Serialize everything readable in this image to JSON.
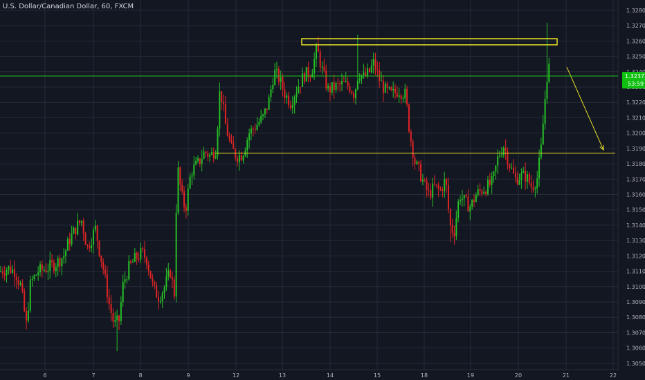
{
  "header": {
    "title": "U.S. Dollar/Canadian Dollar, 60, FXCM"
  },
  "price_tag": {
    "label": "1.32372",
    "countdown": "53:59"
  },
  "colors": {
    "background": "#131722",
    "up": "#26c026",
    "down": "#e02424",
    "annotation": "#e8e028",
    "last_price_line": "#1fc41f",
    "last_price_tag": "#10c010"
  },
  "chart_data": {
    "type": "candlestick",
    "title": "U.S. Dollar/Canadian Dollar, 60, FXCM",
    "xlabel": "",
    "ylabel": "",
    "x_ticks": [
      "6",
      "7",
      "8",
      "9",
      "12",
      "13",
      "14",
      "15",
      "18",
      "19",
      "20",
      "21",
      "22"
    ],
    "y_ticks": [
      "1.32800",
      "1.32700",
      "1.32600",
      "1.32500",
      "1.32400",
      "1.32300",
      "1.32200",
      "1.32100",
      "1.32000",
      "1.31900",
      "1.31800",
      "1.31700",
      "1.31600",
      "1.31500",
      "1.31400",
      "1.31300",
      "1.31200",
      "1.31100",
      "1.31000",
      "1.30900",
      "1.30800",
      "1.30700",
      "1.30600",
      "1.30500"
    ],
    "ylim": [
      1.3045,
      1.3284
    ],
    "grid": true,
    "last_price": 1.32372,
    "path_points": [
      [
        0,
        1.311
      ],
      [
        12,
        1.3112
      ],
      [
        22,
        1.311
      ],
      [
        30,
        1.31
      ],
      [
        38,
        1.3075
      ],
      [
        44,
        1.3102
      ],
      [
        55,
        1.311
      ],
      [
        68,
        1.3112
      ],
      [
        80,
        1.3115
      ],
      [
        92,
        1.312
      ],
      [
        100,
        1.313
      ],
      [
        112,
        1.314
      ],
      [
        118,
        1.3143
      ],
      [
        126,
        1.3125
      ],
      [
        138,
        1.3138
      ],
      [
        143,
        1.3125
      ],
      [
        150,
        1.311
      ],
      [
        158,
        1.3088
      ],
      [
        165,
        1.3075
      ],
      [
        172,
        1.3078
      ],
      [
        178,
        1.3102
      ],
      [
        186,
        1.3112
      ],
      [
        195,
        1.3118
      ],
      [
        205,
        1.3122
      ],
      [
        212,
        1.3118
      ],
      [
        222,
        1.3098
      ],
      [
        230,
        1.3093
      ],
      [
        238,
        1.31
      ],
      [
        246,
        1.311
      ],
      [
        252,
        1.3095
      ],
      [
        256,
        1.318
      ],
      [
        262,
        1.316
      ],
      [
        268,
        1.315
      ],
      [
        276,
        1.3175
      ],
      [
        286,
        1.318
      ],
      [
        296,
        1.3188
      ],
      [
        304,
        1.3185
      ],
      [
        312,
        1.319
      ],
      [
        318,
        1.323
      ],
      [
        326,
        1.3205
      ],
      [
        334,
        1.319
      ],
      [
        342,
        1.3185
      ],
      [
        350,
        1.3186
      ],
      [
        360,
        1.32
      ],
      [
        370,
        1.3205
      ],
      [
        380,
        1.321
      ],
      [
        388,
        1.322
      ],
      [
        396,
        1.324
      ],
      [
        404,
        1.3235
      ],
      [
        412,
        1.3225
      ],
      [
        420,
        1.322
      ],
      [
        430,
        1.323
      ],
      [
        440,
        1.3238
      ],
      [
        450,
        1.324
      ],
      [
        458,
        1.3255
      ],
      [
        466,
        1.324
      ],
      [
        474,
        1.3228
      ],
      [
        484,
        1.323
      ],
      [
        496,
        1.3232
      ],
      [
        506,
        1.323
      ],
      [
        512,
        1.3225
      ],
      [
        518,
        1.324
      ],
      [
        526,
        1.3236
      ],
      [
        534,
        1.324
      ],
      [
        540,
        1.3246
      ],
      [
        548,
        1.3235
      ],
      [
        556,
        1.3228
      ],
      [
        566,
        1.3225
      ],
      [
        576,
        1.3228
      ],
      [
        586,
        1.3225
      ],
      [
        592,
        1.32
      ],
      [
        600,
        1.318
      ],
      [
        606,
        1.3175
      ],
      [
        614,
        1.3165
      ],
      [
        620,
        1.316
      ],
      [
        628,
        1.3165
      ],
      [
        636,
        1.3162
      ],
      [
        644,
        1.317
      ],
      [
        650,
        1.314
      ],
      [
        656,
        1.3135
      ],
      [
        664,
        1.316
      ],
      [
        672,
        1.3155
      ],
      [
        680,
        1.3152
      ],
      [
        688,
        1.316
      ],
      [
        696,
        1.3163
      ],
      [
        704,
        1.3165
      ],
      [
        712,
        1.3168
      ],
      [
        720,
        1.3185
      ],
      [
        728,
        1.3192
      ],
      [
        736,
        1.318
      ],
      [
        744,
        1.317
      ],
      [
        752,
        1.3172
      ],
      [
        760,
        1.3172
      ],
      [
        768,
        1.3165
      ],
      [
        776,
        1.317
      ],
      [
        782,
        1.319
      ],
      [
        788,
        1.3225
      ],
      [
        792,
        1.3245
      ],
      [
        796,
        1.3238
      ]
    ],
    "extremes": [
      {
        "x": 38,
        "low": 1.3072
      },
      {
        "x": 170,
        "low": 1.3058
      },
      {
        "x": 460,
        "high": 1.3263
      },
      {
        "x": 518,
        "high": 1.3264
      },
      {
        "x": 652,
        "low": 1.3129
      },
      {
        "x": 790,
        "high": 1.3272
      }
    ],
    "annotations": [
      {
        "type": "rectangle",
        "from": [
          "13",
          1.32615
        ],
        "to": [
          "20",
          1.32575
        ],
        "color": "#e8e028"
      },
      {
        "type": "horizontal_line",
        "from": [
          "12",
          1.31869
        ],
        "to": [
          "22",
          1.31869
        ],
        "color": "#e8e028"
      },
      {
        "type": "arrow",
        "from": [
          "20",
          1.3243
        ],
        "to": [
          "21",
          1.3189
        ],
        "color": "#e8e028"
      },
      {
        "type": "horizontal_line",
        "value": 1.32372,
        "color": "#1fc41f"
      }
    ]
  }
}
